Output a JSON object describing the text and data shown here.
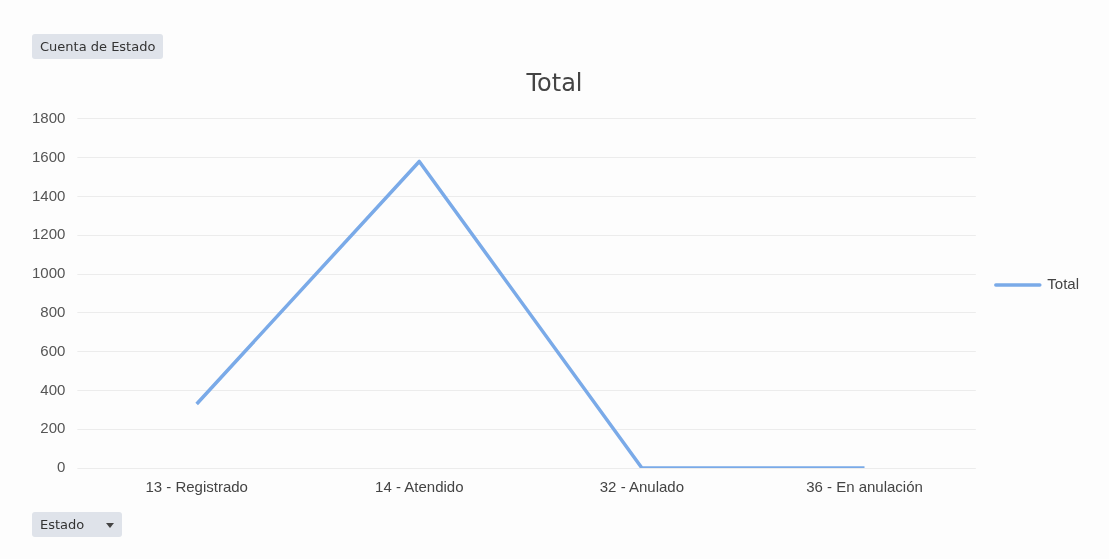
{
  "chart_data": {
    "type": "line",
    "title": "Total",
    "categories": [
      "13 - Registrado",
      "14 - Atendido",
      "32 - Anulado",
      "36 - En anulación"
    ],
    "series": [
      {
        "name": "Total",
        "color": "#7aaae8",
        "values": [
          330,
          1580,
          0,
          0
        ]
      }
    ],
    "ylim": [
      0,
      1800
    ],
    "yticks": [
      0,
      200,
      400,
      600,
      800,
      1000,
      1200,
      1400,
      1600,
      1800
    ],
    "grid": "y",
    "legend": "right",
    "marker": "none",
    "annotations": [
      "Cuenta de Estado",
      "Estado"
    ]
  }
}
